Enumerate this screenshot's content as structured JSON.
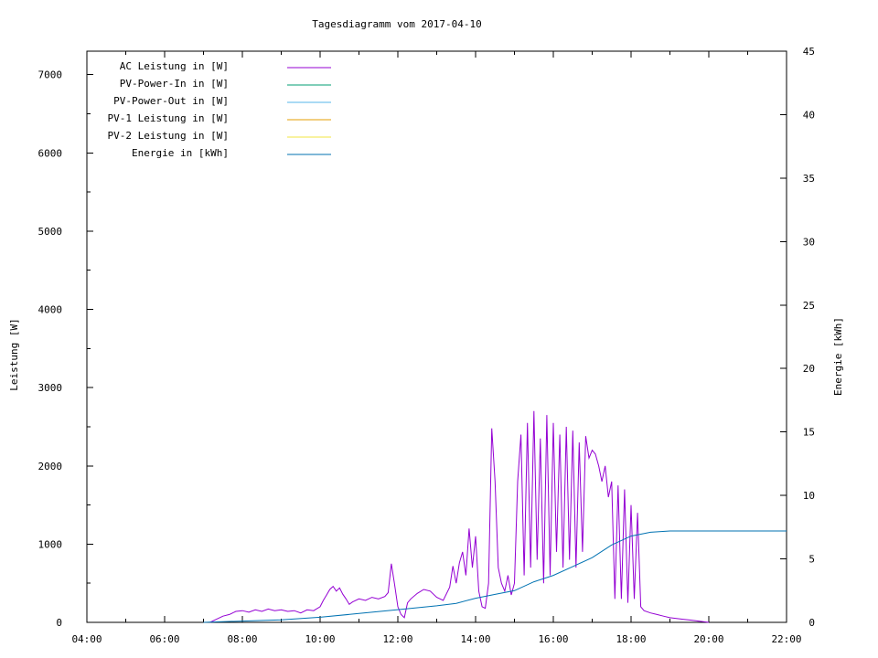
{
  "chart_data": {
    "type": "line",
    "title": "Tagesdiagramm vom 2017-04-10",
    "ylabel": "Leistung [W]",
    "y2label": "Energie [kWh]",
    "xlim": [
      "04:00",
      "22:00"
    ],
    "ylim": [
      0,
      7300
    ],
    "y2lim": [
      0,
      45
    ],
    "xticks": [
      "04:00",
      "06:00",
      "08:00",
      "10:00",
      "12:00",
      "14:00",
      "16:00",
      "18:00",
      "20:00",
      "22:00"
    ],
    "yticks": [
      "0",
      "1000",
      "2000",
      "3000",
      "4000",
      "5000",
      "6000",
      "7000"
    ],
    "y2ticks": [
      "0",
      "5",
      "10",
      "15",
      "20",
      "25",
      "30",
      "35",
      "40",
      "45"
    ],
    "legend_position": "top-left",
    "series": [
      {
        "name": "AC Leistung in [W]",
        "color": "#9400d3",
        "axis": "left",
        "points": [
          [
            "07:10",
            0
          ],
          [
            "07:20",
            40
          ],
          [
            "07:30",
            80
          ],
          [
            "07:40",
            100
          ],
          [
            "07:50",
            140
          ],
          [
            "08:00",
            150
          ],
          [
            "08:10",
            130
          ],
          [
            "08:20",
            160
          ],
          [
            "08:30",
            140
          ],
          [
            "08:40",
            170
          ],
          [
            "08:50",
            150
          ],
          [
            "09:00",
            160
          ],
          [
            "09:10",
            140
          ],
          [
            "09:20",
            150
          ],
          [
            "09:30",
            120
          ],
          [
            "09:40",
            160
          ],
          [
            "09:50",
            150
          ],
          [
            "10:00",
            200
          ],
          [
            "10:05",
            280
          ],
          [
            "10:10",
            350
          ],
          [
            "10:15",
            420
          ],
          [
            "10:20",
            460
          ],
          [
            "10:25",
            400
          ],
          [
            "10:30",
            440
          ],
          [
            "10:35",
            360
          ],
          [
            "10:40",
            300
          ],
          [
            "10:45",
            230
          ],
          [
            "10:50",
            260
          ],
          [
            "11:00",
            300
          ],
          [
            "11:10",
            280
          ],
          [
            "11:20",
            320
          ],
          [
            "11:30",
            300
          ],
          [
            "11:40",
            330
          ],
          [
            "11:45",
            380
          ],
          [
            "11:50",
            750
          ],
          [
            "11:55",
            480
          ],
          [
            "12:00",
            200
          ],
          [
            "12:05",
            100
          ],
          [
            "12:10",
            60
          ],
          [
            "12:15",
            250
          ],
          [
            "12:20",
            300
          ],
          [
            "12:30",
            370
          ],
          [
            "12:40",
            420
          ],
          [
            "12:50",
            400
          ],
          [
            "13:00",
            320
          ],
          [
            "13:10",
            280
          ],
          [
            "13:20",
            450
          ],
          [
            "13:25",
            720
          ],
          [
            "13:30",
            500
          ],
          [
            "13:35",
            760
          ],
          [
            "13:40",
            900
          ],
          [
            "13:45",
            600
          ],
          [
            "13:50",
            1200
          ],
          [
            "13:55",
            700
          ],
          [
            "14:00",
            1100
          ],
          [
            "14:05",
            400
          ],
          [
            "14:10",
            200
          ],
          [
            "14:15",
            180
          ],
          [
            "14:20",
            500
          ],
          [
            "14:25",
            2480
          ],
          [
            "14:30",
            1800
          ],
          [
            "14:35",
            700
          ],
          [
            "14:40",
            500
          ],
          [
            "14:45",
            400
          ],
          [
            "14:50",
            600
          ],
          [
            "14:55",
            350
          ],
          [
            "15:00",
            500
          ],
          [
            "15:05",
            1800
          ],
          [
            "15:10",
            2400
          ],
          [
            "15:15",
            600
          ],
          [
            "15:20",
            2550
          ],
          [
            "15:25",
            700
          ],
          [
            "15:30",
            2700
          ],
          [
            "15:35",
            800
          ],
          [
            "15:40",
            2350
          ],
          [
            "15:45",
            500
          ],
          [
            "15:50",
            2650
          ],
          [
            "15:55",
            600
          ],
          [
            "16:00",
            2550
          ],
          [
            "16:05",
            900
          ],
          [
            "16:10",
            2400
          ],
          [
            "16:15",
            700
          ],
          [
            "16:20",
            2500
          ],
          [
            "16:25",
            800
          ],
          [
            "16:30",
            2450
          ],
          [
            "16:35",
            700
          ],
          [
            "16:40",
            2300
          ],
          [
            "16:45",
            900
          ],
          [
            "16:50",
            2380
          ],
          [
            "16:55",
            2100
          ],
          [
            "17:00",
            2200
          ],
          [
            "17:05",
            2150
          ],
          [
            "17:10",
            2000
          ],
          [
            "17:15",
            1800
          ],
          [
            "17:20",
            2000
          ],
          [
            "17:25",
            1600
          ],
          [
            "17:30",
            1800
          ],
          [
            "17:35",
            300
          ],
          [
            "17:40",
            1750
          ],
          [
            "17:45",
            300
          ],
          [
            "17:50",
            1700
          ],
          [
            "17:55",
            250
          ],
          [
            "18:00",
            1500
          ],
          [
            "18:05",
            300
          ],
          [
            "18:10",
            1400
          ],
          [
            "18:15",
            200
          ],
          [
            "18:20",
            150
          ],
          [
            "18:30",
            120
          ],
          [
            "18:40",
            100
          ],
          [
            "18:50",
            80
          ],
          [
            "19:00",
            60
          ],
          [
            "19:10",
            50
          ],
          [
            "19:20",
            40
          ],
          [
            "19:30",
            30
          ],
          [
            "19:40",
            20
          ],
          [
            "19:50",
            10
          ],
          [
            "20:00",
            0
          ]
        ]
      },
      {
        "name": "PV-Power-In in [W]",
        "color": "#009e73",
        "axis": "left",
        "points": []
      },
      {
        "name": "PV-Power-Out in [W]",
        "color": "#56b4e9",
        "axis": "left",
        "points": []
      },
      {
        "name": "PV-1 Leistung in [W]",
        "color": "#e69f00",
        "axis": "left",
        "points": []
      },
      {
        "name": "PV-2 Leistung in [W]",
        "color": "#f0e442",
        "axis": "left",
        "points": []
      },
      {
        "name": "Energie in [kWh]",
        "color": "#0072b2",
        "axis": "right",
        "points": [
          [
            "07:00",
            0
          ],
          [
            "08:00",
            0.1
          ],
          [
            "09:00",
            0.2
          ],
          [
            "10:00",
            0.4
          ],
          [
            "11:00",
            0.7
          ],
          [
            "12:00",
            1.0
          ],
          [
            "13:00",
            1.3
          ],
          [
            "13:30",
            1.5
          ],
          [
            "14:00",
            1.9
          ],
          [
            "14:30",
            2.2
          ],
          [
            "15:00",
            2.5
          ],
          [
            "15:30",
            3.2
          ],
          [
            "16:00",
            3.7
          ],
          [
            "16:30",
            4.4
          ],
          [
            "17:00",
            5.1
          ],
          [
            "17:30",
            6.1
          ],
          [
            "18:00",
            6.8
          ],
          [
            "18:30",
            7.1
          ],
          [
            "19:00",
            7.2
          ],
          [
            "20:00",
            7.2
          ],
          [
            "21:00",
            7.2
          ],
          [
            "22:00",
            7.2
          ]
        ]
      }
    ]
  }
}
